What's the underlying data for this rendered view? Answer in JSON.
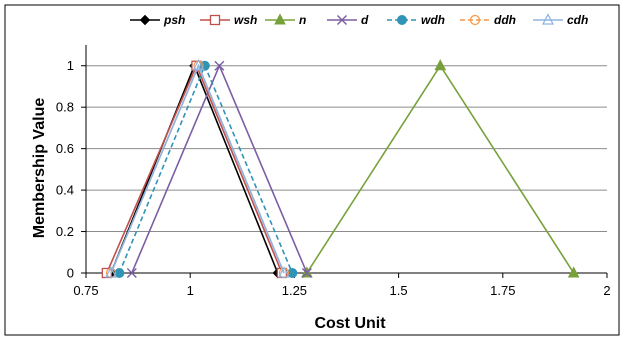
{
  "chart_data": {
    "type": "line",
    "xlabel": "Cost Unit",
    "ylabel": "Membership  Value",
    "xlim": [
      0.75,
      2
    ],
    "ylim": [
      0,
      1.1
    ],
    "xticks": [
      "0.75",
      "1",
      "1.25",
      "1.5",
      "1.75",
      "2"
    ],
    "yticks": [
      "0",
      "0.2",
      "0.4",
      "0.6",
      "0.8",
      "1"
    ],
    "grid": "horizontal",
    "legend_position": "top",
    "series": [
      {
        "name": "psh",
        "color": "#000000",
        "dash": "solid",
        "marker": "diamond",
        "points": [
          [
            0.81,
            0
          ],
          [
            1.01,
            1
          ],
          [
            1.21,
            0
          ]
        ]
      },
      {
        "name": "wsh",
        "color": "#c0504d",
        "dash": "solid",
        "marker": "square-open",
        "points": [
          [
            0.8,
            0
          ],
          [
            1.015,
            1
          ],
          [
            1.22,
            0
          ]
        ]
      },
      {
        "name": "n",
        "color": "#77a03b",
        "dash": "solid",
        "marker": "triangle",
        "points": [
          [
            1.28,
            0
          ],
          [
            1.6,
            1
          ],
          [
            1.92,
            0
          ]
        ]
      },
      {
        "name": "d",
        "color": "#7a5fa3",
        "dash": "solid",
        "marker": "x",
        "points": [
          [
            0.86,
            0
          ],
          [
            1.07,
            1
          ],
          [
            1.28,
            0
          ]
        ]
      },
      {
        "name": "wdh",
        "color": "#2f94b5",
        "dash": "dashed",
        "marker": "circle",
        "points": [
          [
            0.83,
            0
          ],
          [
            1.035,
            1
          ],
          [
            1.245,
            0
          ]
        ]
      },
      {
        "name": "ddh",
        "color": "#f79646",
        "dash": "dashed",
        "marker": "circle-open",
        "points": [
          [
            0.81,
            0
          ],
          [
            1.02,
            1
          ],
          [
            1.225,
            0
          ]
        ]
      },
      {
        "name": "cdh",
        "color": "#8db3e2",
        "dash": "solid",
        "marker": "triangle-open",
        "points": [
          [
            0.81,
            0
          ],
          [
            1.02,
            1
          ],
          [
            1.225,
            0
          ]
        ]
      }
    ]
  }
}
